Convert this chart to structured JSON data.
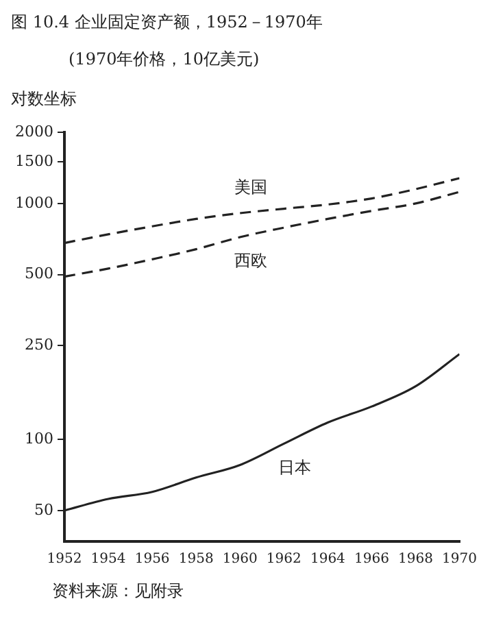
{
  "chart_data": {
    "type": "line",
    "title": "图 10.4 企业固定资产额，1952－1970年",
    "subtitle": "(1970年价格，10亿美元)",
    "ylabel": "对数坐标",
    "annotations": [
      "资料来源：见附录"
    ],
    "x": [
      1952,
      1954,
      1956,
      1958,
      1960,
      1962,
      1964,
      1966,
      1968,
      1970
    ],
    "series": [
      {
        "name": "美国",
        "color": "#222222",
        "line_style": "dashed",
        "values": [
          680,
          740,
          800,
          860,
          910,
          950,
          990,
          1050,
          1150,
          1280
        ]
      },
      {
        "name": "西欧",
        "color": "#222222",
        "line_style": "dashed",
        "values": [
          490,
          530,
          580,
          640,
          720,
          790,
          860,
          930,
          1000,
          1120
        ]
      },
      {
        "name": "日本",
        "color": "#222222",
        "line_style": "solid",
        "values": [
          50,
          56,
          60,
          69,
          78,
          96,
          118,
          138,
          168,
          230
        ]
      }
    ],
    "xlim": [
      1952,
      1970
    ],
    "xticks": [
      1952,
      1954,
      1956,
      1958,
      1960,
      1962,
      1964,
      1966,
      1968,
      1970
    ],
    "ylim": [
      37,
      2000
    ],
    "yticks": [
      50,
      100,
      250,
      500,
      1000,
      1500,
      2000
    ],
    "log": "y",
    "grid": false,
    "legend": false,
    "marker": "none"
  }
}
